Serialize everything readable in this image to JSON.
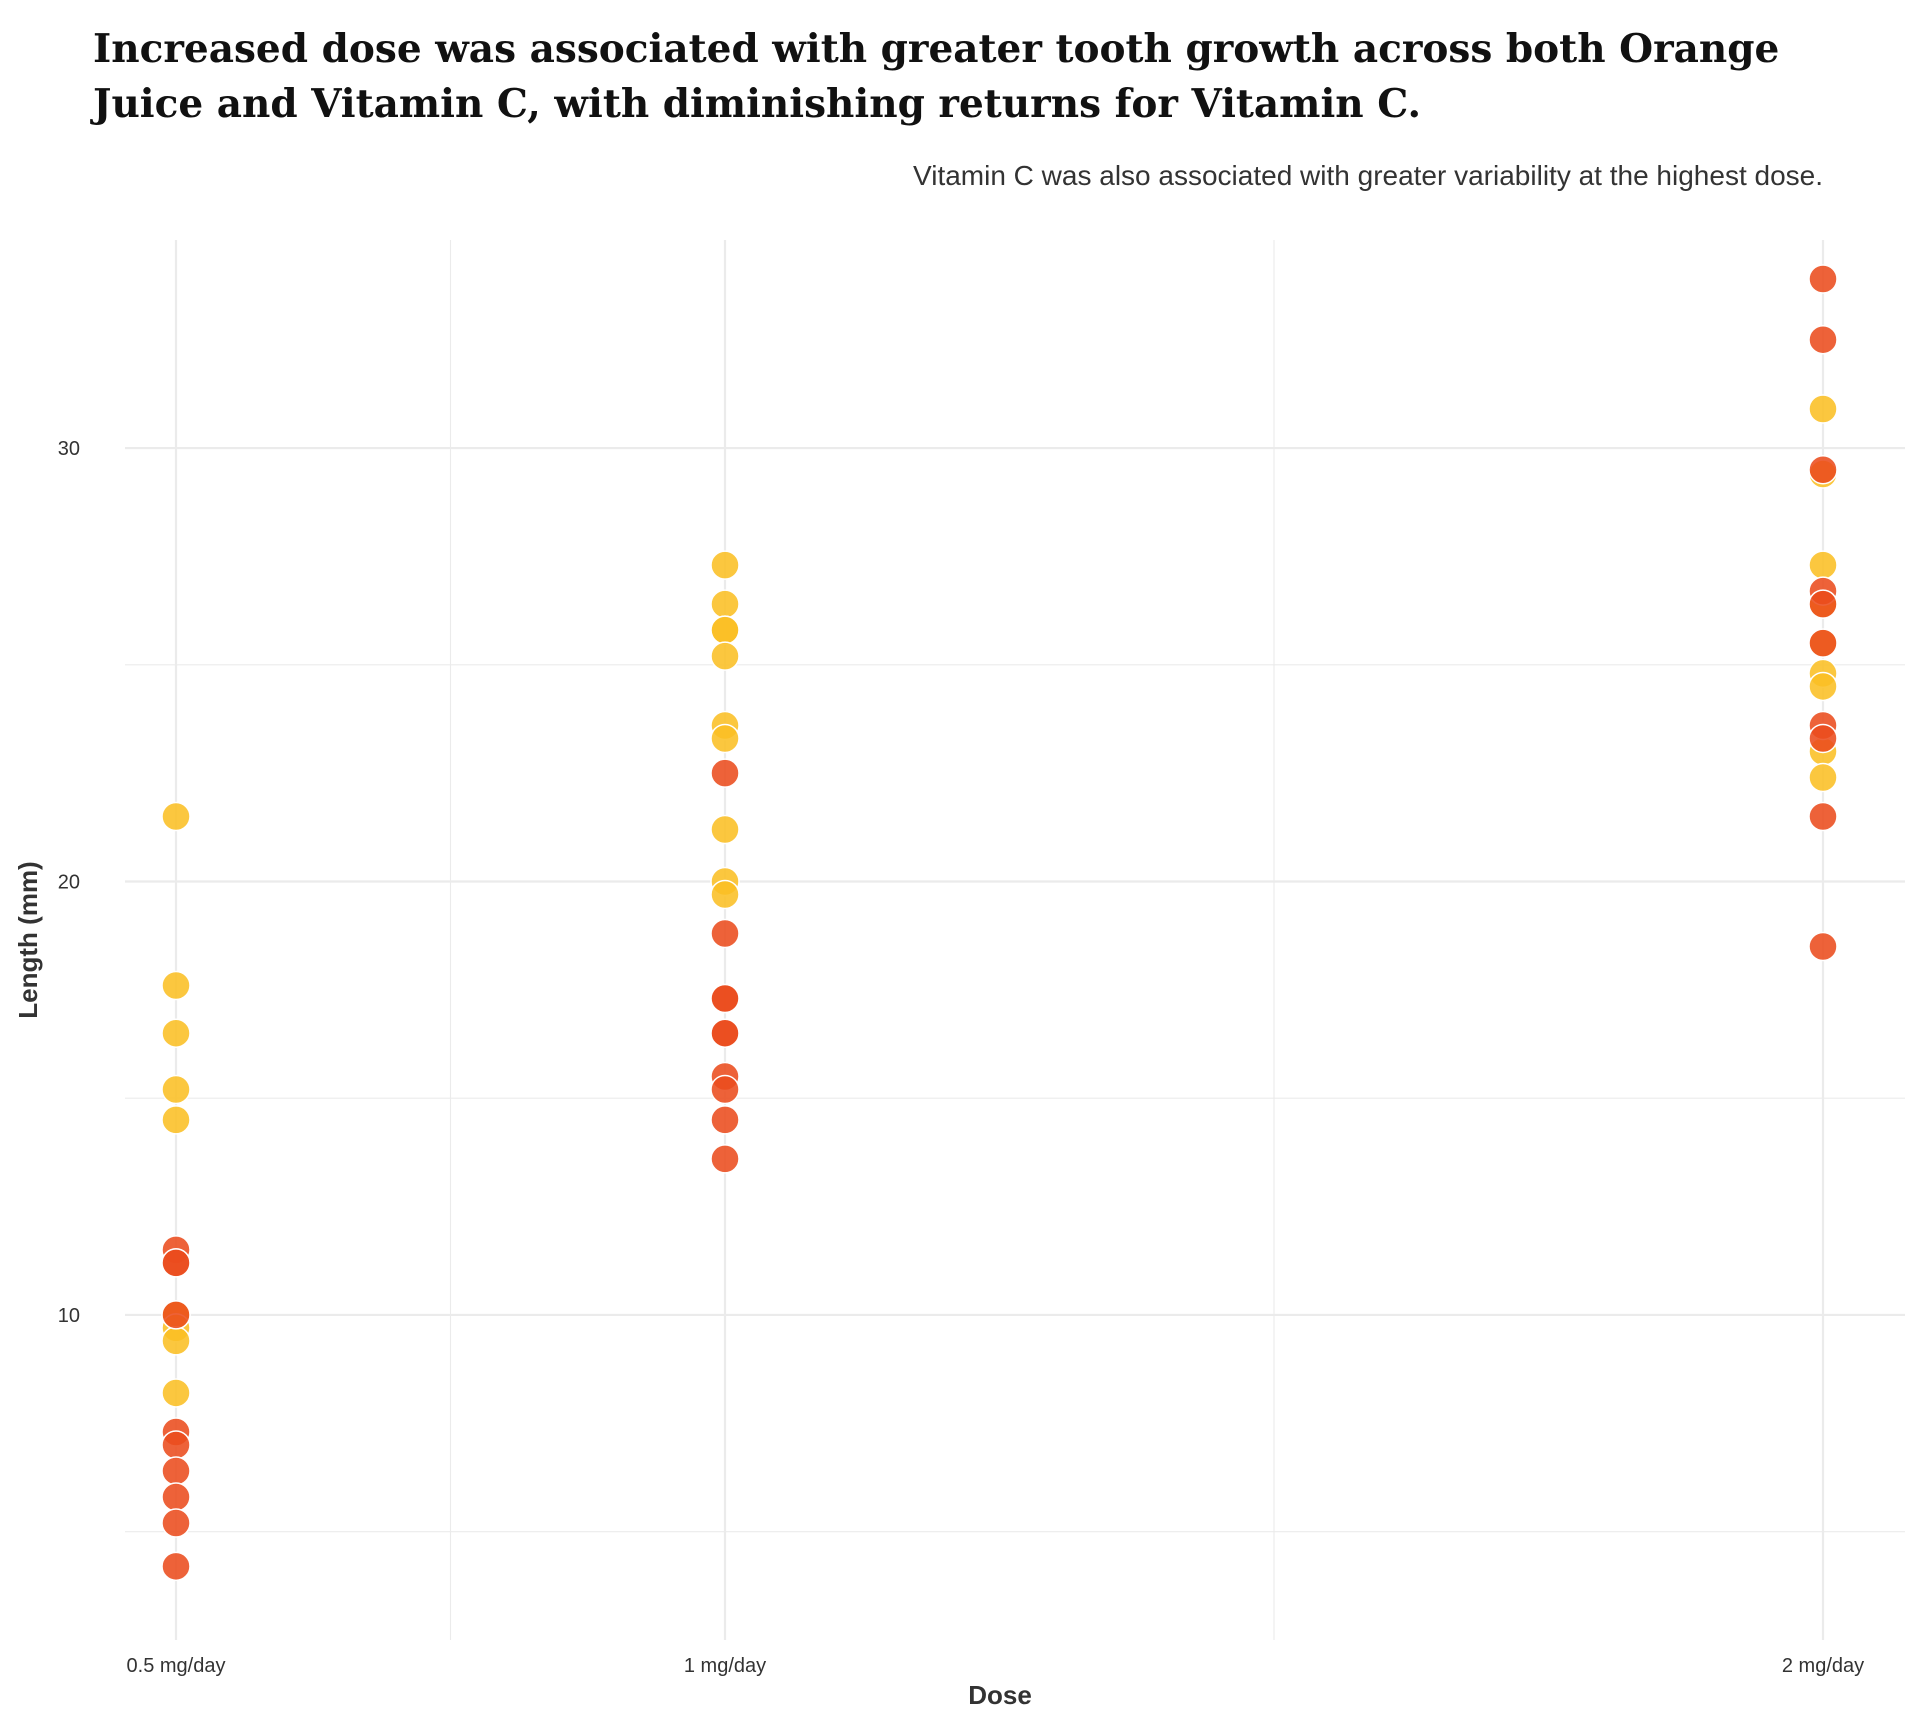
{
  "chart_data": {
    "type": "scatter",
    "title": "Increased dose was associated with greater tooth growth across both Orange Juice and Vitamin C, with diminishing returns for Vitamin C.",
    "subtitle": "Vitamin C was also associated with greater variability at the highest dose.",
    "xlabel": "Dose",
    "ylabel": "Length (mm)",
    "categories": [
      "0.5 mg/day",
      "1 mg/day",
      "2 mg/day"
    ],
    "y_ticks": [
      10,
      20,
      30
    ],
    "ylim": [
      2.5,
      34.8
    ],
    "grid": true,
    "legend": "none",
    "colors": {
      "series_a": "#FBBF24",
      "series_b": "#EA4C1E",
      "grid": "#EBEBEB"
    },
    "series": [
      {
        "color": "#FBBF24",
        "points": [
          {
            "x": "0.5 mg/day",
            "y": 21.5
          },
          {
            "x": "0.5 mg/day",
            "y": 17.6
          },
          {
            "x": "0.5 mg/day",
            "y": 16.5
          },
          {
            "x": "0.5 mg/day",
            "y": 15.2
          },
          {
            "x": "0.5 mg/day",
            "y": 14.5
          },
          {
            "x": "0.5 mg/day",
            "y": 10.0
          },
          {
            "x": "0.5 mg/day",
            "y": 10.0
          },
          {
            "x": "0.5 mg/day",
            "y": 9.7
          },
          {
            "x": "0.5 mg/day",
            "y": 9.4
          },
          {
            "x": "0.5 mg/day",
            "y": 8.2
          },
          {
            "x": "1 mg/day",
            "y": 27.3
          },
          {
            "x": "1 mg/day",
            "y": 26.4
          },
          {
            "x": "1 mg/day",
            "y": 25.8
          },
          {
            "x": "1 mg/day",
            "y": 25.8
          },
          {
            "x": "1 mg/day",
            "y": 25.2
          },
          {
            "x": "1 mg/day",
            "y": 23.6
          },
          {
            "x": "1 mg/day",
            "y": 23.3
          },
          {
            "x": "1 mg/day",
            "y": 21.2
          },
          {
            "x": "1 mg/day",
            "y": 20.0
          },
          {
            "x": "1 mg/day",
            "y": 19.7
          },
          {
            "x": "2 mg/day",
            "y": 30.9
          },
          {
            "x": "2 mg/day",
            "y": 29.4
          },
          {
            "x": "2 mg/day",
            "y": 27.3
          },
          {
            "x": "2 mg/day",
            "y": 26.4
          },
          {
            "x": "2 mg/day",
            "y": 26.4
          },
          {
            "x": "2 mg/day",
            "y": 25.5
          },
          {
            "x": "2 mg/day",
            "y": 24.8
          },
          {
            "x": "2 mg/day",
            "y": 24.5
          },
          {
            "x": "2 mg/day",
            "y": 23.0
          },
          {
            "x": "2 mg/day",
            "y": 22.4
          }
        ]
      },
      {
        "color": "#EA4C1E",
        "points": [
          {
            "x": "0.5 mg/day",
            "y": 11.5
          },
          {
            "x": "0.5 mg/day",
            "y": 11.2
          },
          {
            "x": "0.5 mg/day",
            "y": 11.2
          },
          {
            "x": "0.5 mg/day",
            "y": 7.3
          },
          {
            "x": "0.5 mg/day",
            "y": 7.0
          },
          {
            "x": "0.5 mg/day",
            "y": 6.4
          },
          {
            "x": "0.5 mg/day",
            "y": 5.8
          },
          {
            "x": "0.5 mg/day",
            "y": 5.2
          },
          {
            "x": "0.5 mg/day",
            "y": 4.2
          },
          {
            "x": "0.5 mg/day",
            "y": 10.0
          },
          {
            "x": "1 mg/day",
            "y": 22.5
          },
          {
            "x": "1 mg/day",
            "y": 18.8
          },
          {
            "x": "1 mg/day",
            "y": 17.3
          },
          {
            "x": "1 mg/day",
            "y": 17.3
          },
          {
            "x": "1 mg/day",
            "y": 16.5
          },
          {
            "x": "1 mg/day",
            "y": 16.5
          },
          {
            "x": "1 mg/day",
            "y": 15.5
          },
          {
            "x": "1 mg/day",
            "y": 15.2
          },
          {
            "x": "1 mg/day",
            "y": 14.5
          },
          {
            "x": "1 mg/day",
            "y": 13.6
          },
          {
            "x": "2 mg/day",
            "y": 33.9
          },
          {
            "x": "2 mg/day",
            "y": 32.5
          },
          {
            "x": "2 mg/day",
            "y": 29.5
          },
          {
            "x": "2 mg/day",
            "y": 26.7
          },
          {
            "x": "2 mg/day",
            "y": 25.5
          },
          {
            "x": "2 mg/day",
            "y": 23.6
          },
          {
            "x": "2 mg/day",
            "y": 23.3
          },
          {
            "x": "2 mg/day",
            "y": 21.5
          },
          {
            "x": "2 mg/day",
            "y": 18.5
          },
          {
            "x": "2 mg/day",
            "y": 26.4
          }
        ]
      }
    ]
  }
}
